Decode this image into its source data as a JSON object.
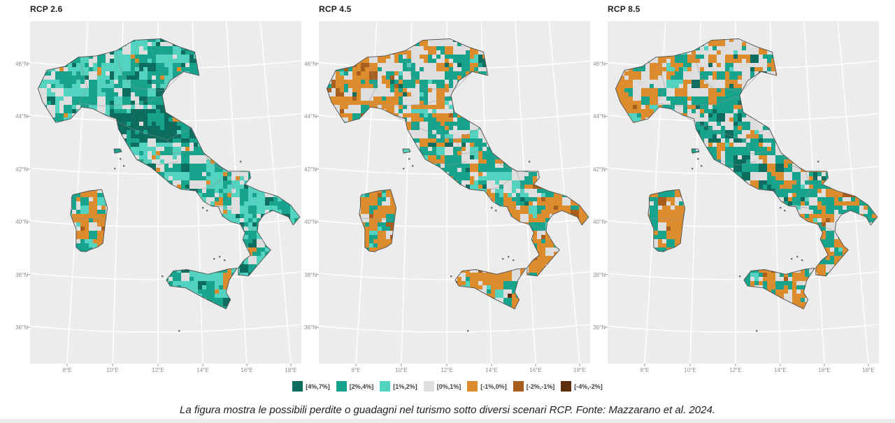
{
  "figure": {
    "panels": [
      {
        "title": "RCP 2.6"
      },
      {
        "title": "RCP 4.5"
      },
      {
        "title": "RCP 8.5"
      }
    ],
    "axes": {
      "lat_ticks": [
        "46°N",
        "44°N",
        "42°N",
        "40°N",
        "38°N",
        "36°N"
      ],
      "lon_ticks": [
        "8°E",
        "10°E",
        "12°E",
        "14°E",
        "16°E",
        "18°E"
      ]
    },
    "legend": {
      "items": [
        {
          "label": "[4%,7%]",
          "color": "#0d6e5f"
        },
        {
          "label": "[2%,4%]",
          "color": "#18a48c"
        },
        {
          "label": "[1%,2%]",
          "color": "#54d2c0"
        },
        {
          "label": "[0%,1%]",
          "color": "#dedede"
        },
        {
          "label": "[-1%,0%]",
          "color": "#dd8c2d"
        },
        {
          "label": "[-2%,-1%]",
          "color": "#a85e1e"
        },
        {
          "label": "[-4%,-2%]",
          "color": "#5e2f0d"
        }
      ]
    },
    "caption": "La figura mostra le possibili perdite o guadagni nel turismo sotto diversi scenari RCP. Fonte: Mazzarano et al. 2024.",
    "colors": {
      "panel_background": "#ececec",
      "gridline": "#ffffff",
      "outline": "#4f4f4f"
    }
  },
  "chart_data": {
    "type": "heatmap",
    "subtype": "choropleth small multiples (municipal level map of Italy)",
    "region": "Italia",
    "panels": [
      "RCP 2.6",
      "RCP 4.5",
      "RCP 8.5"
    ],
    "value_classes": [
      "[4%,7%]",
      "[2%,4%]",
      "[1%,2%]",
      "[0%,1%]",
      "[-1%,0%]",
      "[-2%,-1%]",
      "[-4%,-2%]"
    ],
    "class_colors": [
      "#0d6e5f",
      "#18a48c",
      "#54d2c0",
      "#dedede",
      "#dd8c2d",
      "#a85e1e",
      "#5e2f0d"
    ],
    "x_ticks": [
      "8°E",
      "10°E",
      "12°E",
      "14°E",
      "16°E",
      "18°E"
    ],
    "y_ticks": [
      "46°N",
      "44°N",
      "42°N",
      "40°N",
      "38°N",
      "36°N"
    ],
    "legend_position": "bottom center",
    "panel_patterns": {
      "RCP 2.6": "guadagni diffusi (teal) su quasi tutta la penisola, Pianura Padana in teal scuro, perdite (arancio) concentrate in Sardegna",
      "RCP 4.5": "perdite estese in Piemonte, Sud, Sicilia e Sardegna con macchie marroni; guadagni nel Centro e sulle Alpi; Pianura Padana grigia",
      "RCP 8.5": "perdite dominanti in Puglia, Calabria, Sicilia e Sardegna; Nord-Ovest grigio/arancio; Centro appenninico ancora teal"
    },
    "title": "",
    "caption": "La figura mostra le possibili perdite o guadagni nel turismo sotto diversi scenari RCP. Fonte: Mazzarano et al. 2024."
  }
}
